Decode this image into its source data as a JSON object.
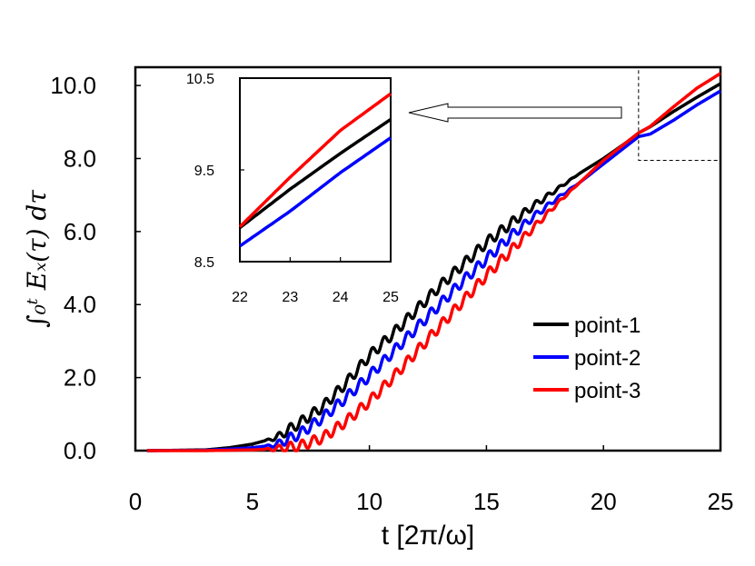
{
  "chart_data": {
    "type": "line",
    "title": "",
    "xlabel": "t [2π/ω]",
    "ylabel": "∫₀ᵗ Eₓ(τ) dτ",
    "xlim": [
      0,
      25
    ],
    "ylim": [
      0,
      10.5
    ],
    "x_ticks": [
      "0",
      "5",
      "10",
      "15",
      "20",
      "25"
    ],
    "y_ticks": [
      "0.0",
      "2.0",
      "4.0",
      "6.0",
      "8.0",
      "10.0"
    ],
    "legend_position": "bottom-right",
    "series": [
      {
        "name": "point-1",
        "color": "#000000",
        "x": [
          0.5,
          3,
          4,
          5,
          6,
          7,
          8,
          9,
          10,
          11,
          12,
          13,
          14,
          15,
          16,
          17,
          18,
          19,
          20,
          21,
          21.5,
          22,
          23,
          24,
          25
        ],
        "y": [
          0,
          0.02,
          0.08,
          0.18,
          0.35,
          0.75,
          1.2,
          1.85,
          2.6,
          3.2,
          3.85,
          4.5,
          5.1,
          5.7,
          6.2,
          6.7,
          7.15,
          7.6,
          8.0,
          8.45,
          8.7,
          8.87,
          9.29,
          9.68,
          10.05
        ],
        "ripple": true
      },
      {
        "name": "point-2",
        "color": "#0000ff",
        "x": [
          0.5,
          3,
          4,
          5,
          6,
          7,
          8,
          9,
          10,
          11,
          12,
          13,
          14,
          15,
          16,
          17,
          18,
          19,
          20,
          21,
          21.5,
          22,
          23,
          24,
          25
        ],
        "y": [
          0,
          0.01,
          0.04,
          0.08,
          0.16,
          0.45,
          0.9,
          1.45,
          2.05,
          2.7,
          3.35,
          4.0,
          4.65,
          5.25,
          5.85,
          6.4,
          6.9,
          7.35,
          7.85,
          8.35,
          8.6,
          8.67,
          9.05,
          9.47,
          9.85
        ],
        "ripple": true
      },
      {
        "name": "point-3",
        "color": "#ff0000",
        "x": [
          0.5,
          3,
          4,
          5,
          6,
          7,
          8,
          9,
          10,
          11,
          12,
          13,
          14,
          15,
          16,
          17,
          18,
          19,
          20,
          21,
          21.5,
          22,
          23,
          24,
          25
        ],
        "y": [
          0,
          0.0,
          0.01,
          0.02,
          0.05,
          0.12,
          0.35,
          0.8,
          1.35,
          2.0,
          2.7,
          3.4,
          4.1,
          4.8,
          5.45,
          6.1,
          6.75,
          7.35,
          7.95,
          8.45,
          8.7,
          8.88,
          9.42,
          9.93,
          10.33
        ],
        "ripple": true
      }
    ],
    "inset": {
      "xlim": [
        22,
        25
      ],
      "ylim": [
        8.5,
        10.5
      ],
      "x_ticks": [
        "22",
        "23",
        "24",
        "25"
      ],
      "y_ticks": [
        "8.5",
        "9.5",
        "10.5"
      ],
      "zoom_region": {
        "x": [
          21.5,
          25
        ],
        "y": [
          7.95,
          10.5
        ]
      }
    }
  }
}
